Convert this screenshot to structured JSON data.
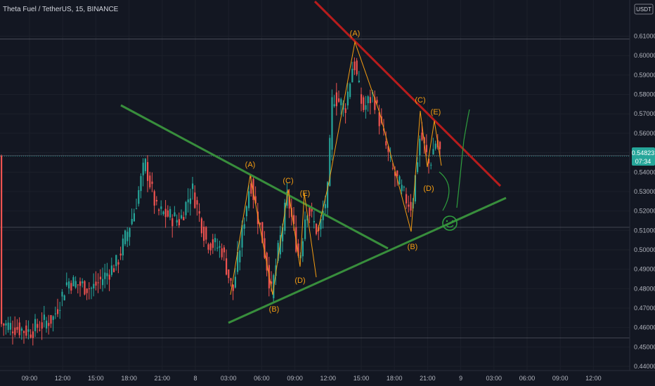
{
  "chart_data": {
    "type": "candlestick",
    "title": "Theta Fuel / TetherUS, 15, BINANCE",
    "currency_badge": "USDT",
    "price_axis": {
      "range": [
        0.44,
        0.612
      ],
      "ticks": [
        0.61,
        0.6,
        0.59,
        0.58,
        0.57,
        0.56,
        0.55,
        0.54,
        0.53,
        0.52,
        0.51,
        0.5,
        0.49,
        0.48,
        0.47,
        0.46,
        0.45,
        0.44
      ],
      "tick_labels": [
        "0.61000",
        "0.60000",
        "0.59000",
        "0.58000",
        "0.57000",
        "0.56000",
        "0.55000",
        "0.54000",
        "0.53000",
        "0.52000",
        "0.51000",
        "0.50000",
        "0.49000",
        "0.48000",
        "0.47000",
        "0.46000",
        "0.45000",
        "0.44000"
      ]
    },
    "time_axis": {
      "labels": [
        "09:00",
        "12:00",
        "15:00",
        "18:00",
        "21:00",
        "8",
        "03:00",
        "06:00",
        "09:00",
        "12:00",
        "15:00",
        "18:00",
        "21:00",
        "9",
        "03:00",
        "06:00",
        "09:00",
        "12:00"
      ]
    },
    "current_price": {
      "value": 0.54823,
      "label": "0.54823",
      "countdown": "07:34",
      "color": "#26a69a"
    },
    "horizontal_lines": [
      0.6085,
      0.5485,
      0.5116,
      0.4546
    ],
    "colors": {
      "up": "#26a69a",
      "down": "#ef5350",
      "support": "#388e3c",
      "resistance": "#b71c1c",
      "wave": "#f39c12",
      "projection": "#2e9e3e"
    },
    "wave_labels": [
      "(A)",
      "(C)",
      "(E)",
      "(B)",
      "(D)",
      "(A)",
      "(C)",
      "(E)",
      "(B)",
      "(D)"
    ],
    "annotation_icon": "smiley-face-icon"
  }
}
